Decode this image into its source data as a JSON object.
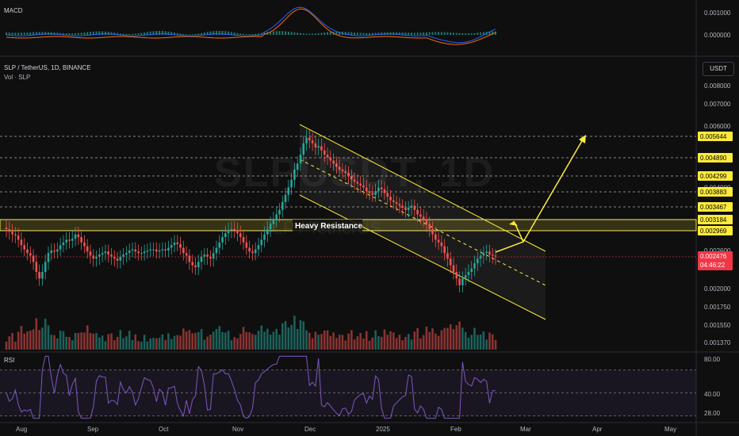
{
  "header": {
    "symbol": "SLP / TetherUS, 1D, BINANCE",
    "volume": "Vol · SLP",
    "unit": "USDT",
    "watermark": "SLPUSDT, 1D",
    "watermark_sub": "SLP / TetherUS"
  },
  "macd_pane": {
    "label": "MACD",
    "ticks": [
      "0.001000",
      "0.000000"
    ]
  },
  "rsi_pane": {
    "label": "RSI",
    "ticks": [
      "80.00",
      "40.00",
      "28.00"
    ]
  },
  "colors": {
    "up": "#26a69a",
    "down": "#ef5350",
    "level_line": "#ffeb3b",
    "macd": "#2962ff",
    "signal": "#ff6d00",
    "rsi": "#7e57c2",
    "price_badge": "#f23645"
  },
  "chart_data": {
    "type": "candlestick",
    "symbol": "SLP / TetherUS",
    "interval": "1D",
    "exchange": "BINANCE",
    "x_ticks": [
      "Aug",
      "Sep",
      "Oct",
      "Nov",
      "Dec",
      "2025",
      "Feb",
      "Mar",
      "Apr",
      "May"
    ],
    "y_ticks": [
      "0.008000",
      "0.007000",
      "0.006000",
      "0.004000",
      "0.003000",
      "0.002600",
      "0.002000",
      "0.001750",
      "0.001550",
      "0.001370"
    ],
    "levels": [
      "0.005644",
      "0.004890",
      "0.004299",
      "0.003883",
      "0.003467",
      "0.003184",
      "0.002969"
    ],
    "last_price": "0.002476",
    "countdown": "04:46:22",
    "annotation": "Heavy Resistance",
    "resistance_zone": [
      0.002969,
      0.003184
    ],
    "close_series": [
      0.003,
      0.00295,
      0.0029,
      0.00288,
      0.0028,
      0.0027,
      0.00262,
      0.00255,
      0.0025,
      0.0024,
      0.00225,
      0.00215,
      0.00225,
      0.0024,
      0.00255,
      0.0026,
      0.00258,
      0.00262,
      0.0027,
      0.00275,
      0.0028,
      0.00278,
      0.00282,
      0.0029,
      0.00285,
      0.00275,
      0.00268,
      0.00258,
      0.0025,
      0.00245,
      0.00248,
      0.00252,
      0.00255,
      0.00258,
      0.00252,
      0.00248,
      0.00245,
      0.00242,
      0.00248,
      0.00252,
      0.00255,
      0.0026,
      0.00262,
      0.00258,
      0.00255,
      0.00255,
      0.00258,
      0.0026,
      0.00262,
      0.00262,
      0.00258,
      0.0026,
      0.00262,
      0.0026,
      0.00265,
      0.0027,
      0.00275,
      0.00272,
      0.00265,
      0.00255,
      0.0025,
      0.0024,
      0.00235,
      0.00232,
      0.0024,
      0.00248,
      0.00252,
      0.00248,
      0.00245,
      0.00255,
      0.00265,
      0.00275,
      0.00285,
      0.00292,
      0.00298,
      0.003,
      0.00298,
      0.00292,
      0.00285,
      0.00275,
      0.00265,
      0.00258,
      0.00255,
      0.00262,
      0.0027,
      0.0028,
      0.0029,
      0.003,
      0.0031,
      0.0032,
      0.0033,
      0.0034,
      0.0036,
      0.0038,
      0.004,
      0.0042,
      0.0045,
      0.0047,
      0.005,
      0.0054,
      0.0056,
      0.0055,
      0.0054,
      0.00525,
      0.0053,
      0.00515,
      0.005,
      0.0049,
      0.0048,
      0.0047,
      0.0046,
      0.0045,
      0.00445,
      0.0044,
      0.0043,
      0.0042,
      0.00415,
      0.0041,
      0.00405,
      0.004,
      0.0039,
      0.00385,
      0.0038,
      0.0039,
      0.004,
      0.00395,
      0.00385,
      0.00375,
      0.00365,
      0.0036,
      0.00355,
      0.0035,
      0.00345,
      0.0034,
      0.00345,
      0.0035,
      0.0034,
      0.0033,
      0.00325,
      0.0032,
      0.0031,
      0.003,
      0.0029,
      0.0028,
      0.00275,
      0.00268,
      0.00255,
      0.00245,
      0.00235,
      0.00225,
      0.00215,
      0.00205,
      0.00215,
      0.0022,
      0.00225,
      0.0023,
      0.00238,
      0.00245,
      0.0025,
      0.00255,
      0.00258,
      0.00252,
      0.0025,
      0.00248
    ],
    "projection": [
      [
        0.002476,
        0.0026
      ],
      [
        0.0033,
        0.003
      ],
      [
        0.005644
      ]
    ],
    "x_range": [
      "Aug",
      "May"
    ]
  }
}
